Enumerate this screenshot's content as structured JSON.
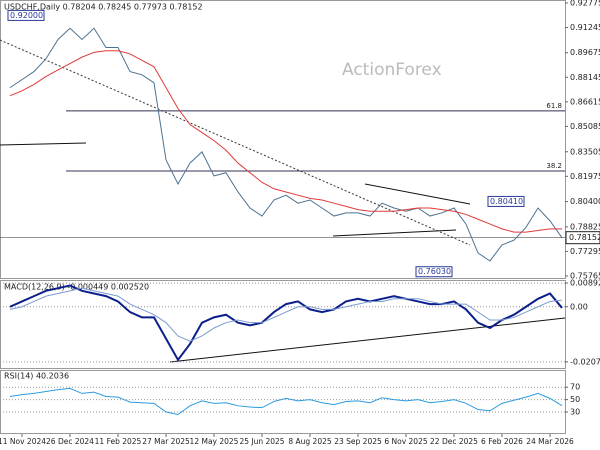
{
  "chart_data": [
    {
      "type": "line",
      "title": "USDCHF,Daily  0.78204 0.78245 0.77973 0.78152",
      "watermark": "ActionForex",
      "categories": [
        null,
        "11 Nov 2024",
        null,
        null,
        null,
        "26 Dec 2024",
        null,
        null,
        null,
        "11 Feb 2025",
        null,
        null,
        null,
        "27 Mar 2025",
        null,
        null,
        null,
        "12 May 2025",
        null,
        null,
        null,
        "25 Jun 2025",
        null,
        null,
        null,
        "8 Aug 2025",
        null,
        null,
        null,
        "23 Sep 2025",
        null,
        null,
        null,
        "6 Nov 2025",
        null,
        null,
        null,
        "22 Dec 2025",
        null,
        null,
        null,
        "6 Feb 2026",
        null,
        null,
        null,
        "24 Mar 2026",
        null
      ],
      "series": [
        {
          "color": "#4d7291",
          "values": [
            0.875,
            0.88,
            0.885,
            0.893,
            0.905,
            0.912,
            0.905,
            0.912,
            0.9,
            0.9,
            0.885,
            0.883,
            0.878,
            0.83,
            0.815,
            0.828,
            0.835,
            0.82,
            0.822,
            0.81,
            0.8,
            0.795,
            0.805,
            0.808,
            0.803,
            0.805,
            0.8,
            0.795,
            0.797,
            0.797,
            0.795,
            0.803,
            0.8,
            0.798,
            0.8,
            0.795,
            0.797,
            0.8,
            0.79,
            0.772,
            0.767,
            0.777,
            0.78,
            0.788,
            0.8,
            0.792,
            0.7815
          ]
        },
        {
          "color": "#e03a3a",
          "values": [
            0.87,
            0.873,
            0.877,
            0.882,
            0.886,
            0.89,
            0.894,
            0.897,
            0.898,
            0.898,
            0.896,
            0.892,
            0.888,
            0.875,
            0.862,
            0.852,
            0.847,
            0.842,
            0.836,
            0.828,
            0.822,
            0.816,
            0.812,
            0.81,
            0.808,
            0.806,
            0.805,
            0.803,
            0.801,
            0.799,
            0.798,
            0.798,
            0.798,
            0.799,
            0.8,
            0.8,
            0.799,
            0.798,
            0.796,
            0.793,
            0.79,
            0.787,
            0.785,
            0.785,
            0.786,
            0.787,
            0.787
          ]
        }
      ],
      "ylim": [
        0.7564,
        0.9296
      ],
      "yticks": [
        0.92775,
        0.91245,
        0.89675,
        0.88145,
        0.86615,
        0.85085,
        0.83505,
        0.81975,
        {
          "value": 0.804,
          "label": "0.80400"
        },
        0.78825,
        0.77295,
        0.75765
      ],
      "levels": [
        {
          "label": "61.8",
          "value": 0.8605
        },
        {
          "label": "38.2",
          "value": 0.8231
        }
      ],
      "annotations": [
        {
          "label": "0.92000",
          "value": 0.92,
          "x": 2
        },
        {
          "label": "0.80410",
          "value": 0.8041,
          "x": 42
        },
        {
          "label": "0.76030",
          "value": 0.7603,
          "x": 36
        }
      ],
      "last_price": {
        "label": "0.78152",
        "value": 0.78152
      }
    },
    {
      "type": "line",
      "title": "MACD(12,26,9) -0.000449 0.002520",
      "series": [
        {
          "color": "#0b1f8c",
          "values": [
            0.0,
            0.002,
            0.004,
            0.006,
            0.007,
            0.008,
            0.006,
            0.005,
            0.004,
            0.002,
            -0.002,
            -0.004,
            -0.004,
            -0.012,
            -0.02,
            -0.014,
            -0.006,
            -0.004,
            -0.003,
            -0.006,
            -0.007,
            -0.006,
            -0.002,
            0.001,
            0.002,
            -0.001,
            -0.002,
            -0.001,
            0.002,
            0.003,
            0.002,
            0.003,
            0.004,
            0.003,
            0.002,
            0.001,
            0.001,
            0.002,
            -0.001,
            -0.006,
            -0.008,
            -0.005,
            -0.003,
            0.0,
            0.003,
            0.005,
            -0.000449
          ]
        },
        {
          "color": "#7d9bd1",
          "values": [
            -0.001,
            0.0,
            0.002,
            0.004,
            0.005,
            0.006,
            0.007,
            0.006,
            0.005,
            0.004,
            0.001,
            -0.001,
            -0.003,
            -0.006,
            -0.011,
            -0.013,
            -0.011,
            -0.008,
            -0.006,
            -0.005,
            -0.006,
            -0.006,
            -0.004,
            -0.002,
            0.0,
            0.0,
            -0.001,
            -0.001,
            0.0,
            0.001,
            0.002,
            0.002,
            0.003,
            0.003,
            0.003,
            0.002,
            0.001,
            0.001,
            0.001,
            -0.002,
            -0.005,
            -0.005,
            -0.004,
            -0.002,
            0.0,
            0.002,
            0.00252
          ]
        }
      ],
      "ylim": [
        -0.023072,
        0.01008
      ],
      "yticks": [
        0.008923,
        {
          "value": 0,
          "label": "0.00"
        },
        -0.020759
      ],
      "grid": true
    },
    {
      "type": "line",
      "title": "RSI(14) 40.2036",
      "series": [
        {
          "color": "#2c9be0",
          "values": [
            55,
            58,
            60,
            63,
            66,
            68,
            60,
            62,
            55,
            54,
            46,
            45,
            44,
            30,
            26,
            40,
            48,
            44,
            45,
            40,
            38,
            37,
            47,
            52,
            48,
            50,
            45,
            42,
            47,
            48,
            45,
            53,
            50,
            48,
            50,
            45,
            47,
            50,
            44,
            34,
            32,
            44,
            49,
            54,
            60,
            52,
            40.2036
          ]
        }
      ],
      "ylim": [
        -5.4,
        97.7
      ],
      "yticks": [
        70,
        50,
        30
      ],
      "grid": true
    }
  ]
}
